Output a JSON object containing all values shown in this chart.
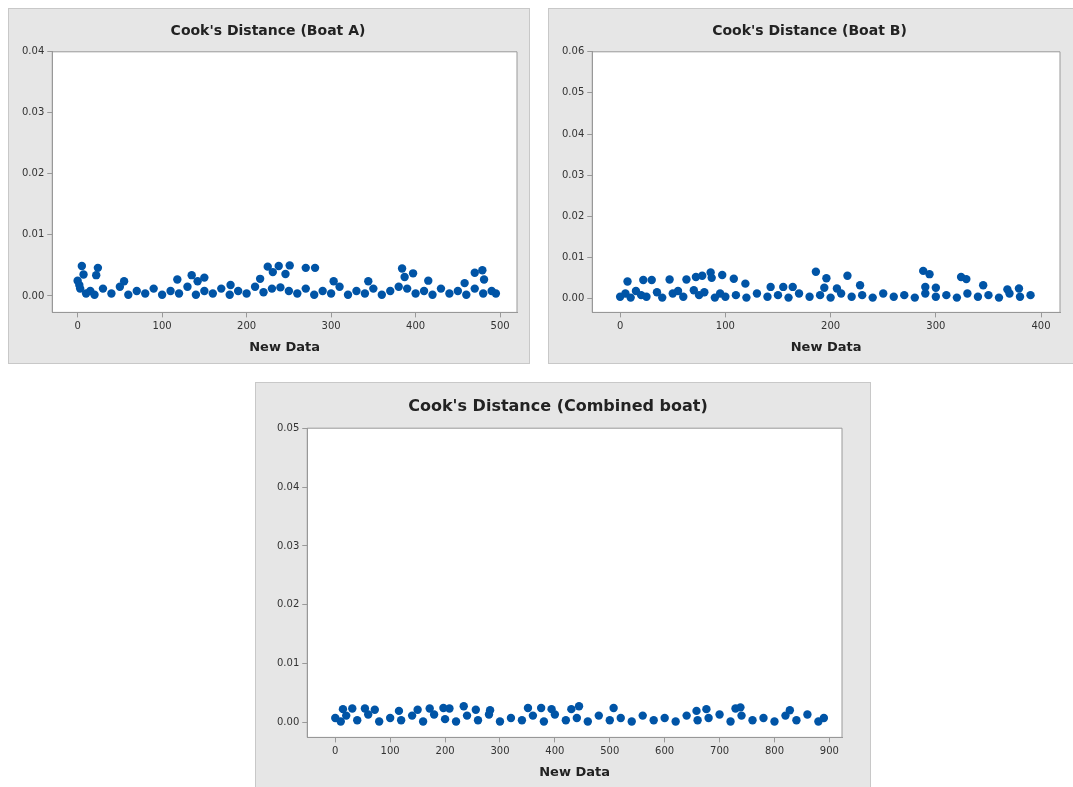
{
  "chart_data": [
    {
      "type": "scatter",
      "title": "Cook's Distance (Boat A)",
      "xlabel": "New Data",
      "xlim": [
        -30,
        520
      ],
      "ylim": [
        -0.0027,
        0.04
      ],
      "xticks": [
        0,
        100,
        200,
        300,
        400,
        500
      ],
      "yticks": [
        {
          "value": 0,
          "label": "0.00"
        },
        {
          "value": 0.01,
          "label": "0.01"
        },
        {
          "value": 0.02,
          "label": "0.02"
        },
        {
          "value": 0.03,
          "label": "0.03"
        },
        {
          "value": 0.04,
          "label": "0.04"
        }
      ],
      "grid": false,
      "legend": false,
      "marker": "circle",
      "series": [
        {
          "color": "#0054a6",
          "x": [
            5,
            24,
            7,
            22,
            225,
            238,
            251,
            231,
            246,
            270,
            281,
            384,
            387,
            397,
            470,
            479,
            481,
            135,
            150,
            142,
            118,
            55,
            181,
            303,
            344,
            415,
            458,
            216,
            0,
            2,
            3,
            10,
            15,
            20,
            30,
            40,
            50,
            60,
            70,
            80,
            90,
            100,
            110,
            120,
            130,
            140,
            150,
            160,
            170,
            180,
            190,
            200,
            210,
            220,
            230,
            240,
            250,
            260,
            270,
            280,
            290,
            300,
            310,
            320,
            330,
            340,
            350,
            360,
            370,
            380,
            390,
            400,
            410,
            420,
            430,
            440,
            450,
            460,
            470,
            480,
            490,
            495
          ],
          "values": [
            0.0049,
            0.0046,
            0.0035,
            0.0034,
            0.0048,
            0.0049,
            0.005,
            0.0039,
            0.0036,
            0.0046,
            0.0046,
            0.0045,
            0.0031,
            0.0037,
            0.0038,
            0.0042,
            0.0027,
            0.0034,
            0.003,
            0.0024,
            0.0027,
            0.0024,
            0.0018,
            0.0024,
            0.0024,
            0.0025,
            0.0021,
            0.0028,
            0.0025,
            0.0018,
            0.0012,
            0.0004,
            0.0008,
            0.0002,
            0.0012,
            0.0004,
            0.0015,
            0.0002,
            0.0008,
            0.0004,
            0.0012,
            0.0002,
            0.0008,
            0.0004,
            0.0015,
            0.0002,
            0.0008,
            0.0004,
            0.0012,
            0.0002,
            0.0008,
            0.0004,
            0.0015,
            0.0006,
            0.0012,
            0.0014,
            0.0008,
            0.0004,
            0.0012,
            0.0002,
            0.0008,
            0.0004,
            0.0015,
            0.0002,
            0.0008,
            0.0004,
            0.0012,
            0.0002,
            0.0008,
            0.0015,
            0.0012,
            0.0004,
            0.0008,
            0.0002,
            0.0012,
            0.0004,
            0.0008,
            0.0002,
            0.0012,
            0.0004,
            0.0008,
            0.0004
          ]
        }
      ]
    },
    {
      "type": "scatter",
      "title": "Cook's Distance (Boat B)",
      "xlabel": "New Data",
      "xlim": [
        -26.5,
        418
      ],
      "ylim": [
        -0.0034,
        0.06
      ],
      "xticks": [
        0,
        100,
        200,
        300,
        400
      ],
      "yticks": [
        {
          "value": 0,
          "label": "0.00"
        },
        {
          "value": 0.01,
          "label": "0.01"
        },
        {
          "value": 0.02,
          "label": "0.02"
        },
        {
          "value": 0.03,
          "label": "0.03"
        },
        {
          "value": 0.04,
          "label": "0.04"
        },
        {
          "value": 0.05,
          "label": "0.05"
        },
        {
          "value": 0.06,
          "label": "0.06"
        }
      ],
      "grid": false,
      "legend": false,
      "marker": "circle",
      "series": [
        {
          "color": "#0054a6",
          "x": [
            186,
            196,
            216,
            288,
            294,
            324,
            329,
            86,
            97,
            78,
            72,
            63,
            47,
            30,
            22,
            7,
            108,
            119,
            87,
            143,
            155,
            164,
            194,
            206,
            228,
            290,
            300,
            345,
            368,
            379,
            0,
            5,
            10,
            15,
            20,
            25,
            35,
            40,
            50,
            55,
            60,
            70,
            75,
            80,
            90,
            95,
            100,
            110,
            120,
            130,
            140,
            150,
            160,
            170,
            180,
            190,
            200,
            210,
            220,
            230,
            240,
            250,
            260,
            270,
            280,
            290,
            300,
            310,
            320,
            330,
            340,
            350,
            360,
            370,
            380,
            390
          ],
          "values": [
            0.0065,
            0.0049,
            0.0055,
            0.0067,
            0.0059,
            0.0052,
            0.0047,
            0.0063,
            0.0057,
            0.0055,
            0.0052,
            0.0046,
            0.0046,
            0.0045,
            0.0045,
            0.0041,
            0.0048,
            0.0036,
            0.005,
            0.0028,
            0.0028,
            0.0028,
            0.0026,
            0.0024,
            0.0032,
            0.0028,
            0.0026,
            0.0032,
            0.0022,
            0.0024,
            0.0004,
            0.0012,
            0.0002,
            0.0018,
            0.0008,
            0.0004,
            0.0015,
            0.0002,
            0.0012,
            0.0018,
            0.0004,
            0.002,
            0.0008,
            0.0015,
            0.0002,
            0.0012,
            0.0004,
            0.0008,
            0.0002,
            0.0012,
            0.0004,
            0.0008,
            0.0002,
            0.0012,
            0.0004,
            0.0008,
            0.0002,
            0.0012,
            0.0004,
            0.0008,
            0.0002,
            0.0012,
            0.0004,
            0.0008,
            0.0002,
            0.0012,
            0.0004,
            0.0008,
            0.0002,
            0.0012,
            0.0004,
            0.0008,
            0.0002,
            0.0012,
            0.0004,
            0.0008
          ]
        }
      ]
    },
    {
      "type": "scatter",
      "title": "Cook's Distance (Combined boat)",
      "xlabel": "New Data",
      "xlim": [
        -51,
        923
      ],
      "ylim": [
        -0.0025,
        0.05
      ],
      "xticks": [
        0,
        100,
        200,
        300,
        400,
        500,
        600,
        700,
        800,
        900
      ],
      "yticks": [
        {
          "value": 0,
          "label": "0.00"
        },
        {
          "value": 0.01,
          "label": "0.01"
        },
        {
          "value": 0.02,
          "label": "0.02"
        },
        {
          "value": 0.03,
          "label": "0.03"
        },
        {
          "value": 0.04,
          "label": "0.04"
        },
        {
          "value": 0.05,
          "label": "0.05"
        }
      ],
      "grid": false,
      "legend": false,
      "marker": "circle",
      "series": [
        {
          "color": "#0054a6",
          "x": [
            234,
            351,
            444,
            507,
            375,
            14,
            31,
            54,
            72,
            116,
            150,
            172,
            197,
            208,
            256,
            282,
            394,
            430,
            658,
            676,
            729,
            738,
            828,
            0,
            10,
            20,
            40,
            60,
            80,
            100,
            120,
            140,
            160,
            180,
            200,
            220,
            240,
            260,
            280,
            300,
            320,
            340,
            360,
            380,
            400,
            420,
            440,
            460,
            480,
            500,
            520,
            540,
            560,
            580,
            600,
            620,
            640,
            660,
            680,
            700,
            720,
            740,
            760,
            780,
            800,
            820,
            840,
            860,
            880,
            890
          ],
          "values": [
            0.0028,
            0.0025,
            0.0028,
            0.0025,
            0.0025,
            0.0023,
            0.0024,
            0.0024,
            0.0022,
            0.002,
            0.0022,
            0.0024,
            0.0025,
            0.0024,
            0.0022,
            0.0021,
            0.0023,
            0.0023,
            0.002,
            0.0023,
            0.0024,
            0.0026,
            0.0021,
            0.0008,
            0.0002,
            0.0012,
            0.0004,
            0.0014,
            0.0002,
            0.0008,
            0.0004,
            0.0012,
            0.0002,
            0.0014,
            0.0006,
            0.0002,
            0.0012,
            0.0004,
            0.0014,
            0.0002,
            0.0008,
            0.0004,
            0.0012,
            0.0002,
            0.0014,
            0.0004,
            0.0008,
            0.0002,
            0.0012,
            0.0004,
            0.0008,
            0.0002,
            0.0012,
            0.0004,
            0.0008,
            0.0002,
            0.0012,
            0.0004,
            0.0008,
            0.0014,
            0.0002,
            0.0012,
            0.0004,
            0.0008,
            0.0002,
            0.0012,
            0.0004,
            0.0014,
            0.0002,
            0.0008
          ]
        }
      ]
    }
  ]
}
